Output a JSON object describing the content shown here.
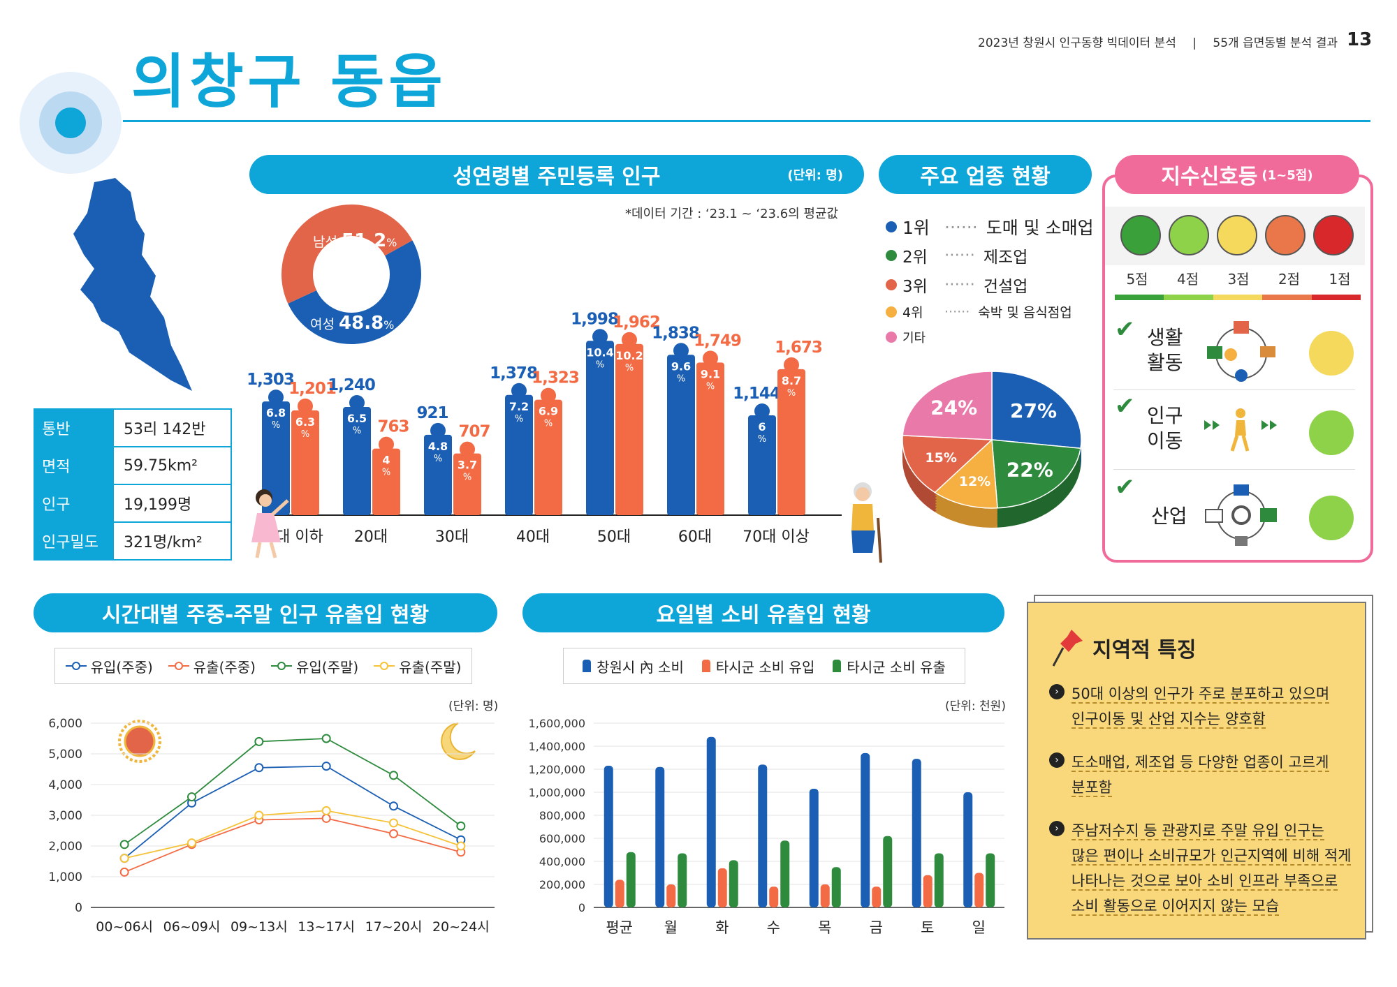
{
  "header": {
    "report_title": "2023년 창원시 인구동향 빅데이터 분석",
    "section": "55개 읍면동별 분석 결과",
    "page_number": "13"
  },
  "district": {
    "title": "의창구 동읍",
    "stats": [
      {
        "label": "통반",
        "value": "53리 142반"
      },
      {
        "label": "면적",
        "value": "59.75km²"
      },
      {
        "label": "인구",
        "value": "19,199명"
      },
      {
        "label": "인구밀도",
        "value": "321명/km²"
      }
    ]
  },
  "population_panel": {
    "title": "성연령별 주민등록 인구",
    "unit": "(단위: 명)",
    "note": "*데이터 기간 : ‘23.1 ~ ‘23.6의 평균값",
    "male_label": "남성",
    "male_pct": "51.2",
    "female_label": "여성",
    "female_pct": "48.8",
    "pct_sign": "%"
  },
  "industry_panel": {
    "title": "주요 업종 현황",
    "ranks": [
      {
        "rank": "1위",
        "name": "도매 및 소매업",
        "color": "#1a5fb4"
      },
      {
        "rank": "2위",
        "name": "제조업",
        "color": "#2e8b3e"
      },
      {
        "rank": "3위",
        "name": "건설업",
        "color": "#e2654a"
      },
      {
        "rank": "4위",
        "name": "숙박 및 음식점업",
        "color": "#f5b041"
      },
      {
        "rank": "기타",
        "name": "",
        "color": "#e879a8"
      }
    ]
  },
  "signal_panel": {
    "title": "지수신호등",
    "range": "(1~5점)",
    "scores": [
      "5점",
      "4점",
      "3점",
      "2점",
      "1점"
    ],
    "score_colors": [
      "#3aa13a",
      "#8ed24a",
      "#f5d95c",
      "#e9774a",
      "#d9282b"
    ],
    "items": [
      {
        "label1": "생활",
        "label2": "활동",
        "level": 3
      },
      {
        "label1": "인구",
        "label2": "이동",
        "level": 4
      },
      {
        "label1": "산업",
        "label2": "",
        "level": 4
      }
    ]
  },
  "time_panel": {
    "title": "시간대별 주중-주말 인구 유출입 현황",
    "unit": "(단위: 명)"
  },
  "day_panel": {
    "title": "요일별 소비 유출입 현황",
    "unit": "(단위: 천원)"
  },
  "feature_panel": {
    "title": "지역적 특징",
    "bullets": [
      {
        "l1": "50대 이상의 인구가 주로 분포하고 있으며",
        "l2": "인구이동 및 산업 지수는 양호함",
        "l3": "",
        "l4": ""
      },
      {
        "l1": "도소매업, 제조업 등 다양한 업종이 고르게",
        "l2": "분포함",
        "l3": "",
        "l4": ""
      },
      {
        "l1": "주남저수지 등 관광지로 주말 유입 인구는",
        "l2": "많은 편이나 소비규모가 인근지역에 비해 적게",
        "l3": "나타나는 것으로 보아 소비 인프라 부족으로",
        "l4": "소비 활동으로 이어지지 않는 모습"
      }
    ]
  },
  "chart_data": [
    {
      "type": "pie",
      "title": "",
      "categories": [
        "남성",
        "여성"
      ],
      "values": [
        51.2,
        48.8
      ],
      "colors": [
        "#1a5fb4",
        "#e2654a"
      ],
      "donut": true
    },
    {
      "type": "bar",
      "title": "성연령별 주민등록 인구",
      "categories": [
        "10대 이하",
        "20대",
        "30대",
        "40대",
        "50대",
        "60대",
        "70대 이상"
      ],
      "series": [
        {
          "values": [
            1303,
            1240,
            921,
            1378,
            1998,
            1838,
            1144
          ],
          "pct": [
            "6.8",
            "6.5",
            "4.8",
            "7.2",
            "10.4",
            "9.6",
            "6"
          ],
          "color": "#1a5fb4"
        },
        {
          "values": [
            1201,
            763,
            707,
            1323,
            1962,
            1749,
            1673
          ],
          "pct": [
            "6.3",
            "4",
            "3.7",
            "6.9",
            "10.2",
            "9.1",
            "8.7"
          ],
          "color": "#f26b45"
        }
      ],
      "value_labels": [
        [
          "1,303",
          "1,240",
          "921",
          "1,378",
          "1,998",
          "1,838",
          "1,144"
        ],
        [
          "1,201",
          "763",
          "707",
          "1,323",
          "1,962",
          "1,749",
          "1,673"
        ]
      ]
    },
    {
      "type": "pie",
      "title": "주요 업종 현황",
      "categories": [
        "1위",
        "2위",
        "4위",
        "3위",
        "기타"
      ],
      "values": [
        27,
        22,
        12,
        15,
        24
      ],
      "colors": [
        "#1a5fb4",
        "#2e8b3e",
        "#f5b041",
        "#e2654a",
        "#e879a8"
      ],
      "labels": [
        "27%",
        "22%",
        "12%",
        "15%",
        "24%"
      ]
    },
    {
      "type": "line",
      "title": "시간대별 주중-주말 인구 유출입 현황",
      "x": [
        "00~06시",
        "06~09시",
        "09~13시",
        "13~17시",
        "17~20시",
        "20~24시"
      ],
      "yticks": [
        "6,000",
        "5,000",
        "4,000",
        "3,000",
        "2,000",
        "1,000",
        "0"
      ],
      "ylim": [
        0,
        6000
      ],
      "series": [
        {
          "name": "유입(주중)",
          "color": "#1a5fb4",
          "values": [
            1600,
            3400,
            4550,
            4600,
            3300,
            2200
          ]
        },
        {
          "name": "유출(주중)",
          "color": "#f26b45",
          "values": [
            1150,
            2050,
            2850,
            2900,
            2400,
            1800
          ]
        },
        {
          "name": "유입(주말)",
          "color": "#2e8b3e",
          "values": [
            2050,
            3600,
            5400,
            5500,
            4300,
            2650
          ]
        },
        {
          "name": "유출(주말)",
          "color": "#f5c23a",
          "values": [
            1600,
            2100,
            3000,
            3150,
            2750,
            2000
          ]
        }
      ]
    },
    {
      "type": "bar",
      "title": "요일별 소비 유출입 현황",
      "categories": [
        "평균",
        "월",
        "화",
        "수",
        "목",
        "금",
        "토",
        "일"
      ],
      "yticks": [
        "1,600,000",
        "1,400,000",
        "1,200,000",
        "1,000,000",
        "800,000",
        "600,000",
        "400,000",
        "200,000",
        "0"
      ],
      "ylim": [
        0,
        1600000
      ],
      "series": [
        {
          "name": "창원시 內 소비",
          "color": "#1a5fb4",
          "values": [
            1230000,
            1220000,
            1480000,
            1240000,
            1030000,
            1340000,
            1290000,
            1000000
          ]
        },
        {
          "name": "타시군 소비 유입",
          "color": "#f26b45",
          "values": [
            240000,
            200000,
            340000,
            180000,
            200000,
            180000,
            280000,
            300000
          ]
        },
        {
          "name": "타시군 소비 유출",
          "color": "#2e8b3e",
          "values": [
            480000,
            470000,
            410000,
            580000,
            350000,
            620000,
            470000,
            470000
          ]
        }
      ]
    }
  ]
}
